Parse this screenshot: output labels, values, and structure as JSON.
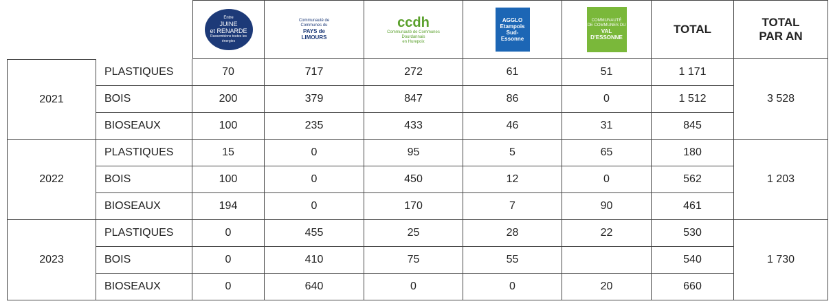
{
  "logos": [
    {
      "lines": [
        "Entre",
        "JUINE",
        "et RENARDE"
      ],
      "tagline": "Rassemblons toutes les énergies"
    },
    {
      "lines": [
        "Communauté de",
        "Communes du",
        "PAYS de",
        "LIMOURS"
      ]
    },
    {
      "lines": [
        "ccdh",
        "Communauté de Communes",
        "Dourdannais",
        "en Hurepoix"
      ]
    },
    {
      "lines": [
        "AGGLO",
        "Etampois",
        "Sud-Essonne"
      ]
    },
    {
      "lines": [
        "COMMUNAUTÉ",
        "DE COMMUNES DU",
        "VAL",
        "D'ESSONNE"
      ]
    }
  ],
  "header": {
    "total": "TOTAL",
    "total_per_year": "TOTAL PAR AN"
  },
  "years": [
    {
      "year": "2021",
      "total": "3 528",
      "rows": [
        {
          "type": "PLASTIQUES",
          "values": [
            "70",
            "717",
            "272",
            "61",
            "51"
          ],
          "total": "1 171"
        },
        {
          "type": "BOIS",
          "values": [
            "200",
            "379",
            "847",
            "86",
            "0"
          ],
          "total": "1 512"
        },
        {
          "type": "BIOSEAUX",
          "values": [
            "100",
            "235",
            "433",
            "46",
            "31"
          ],
          "total": "845"
        }
      ]
    },
    {
      "year": "2022",
      "total": "1 203",
      "rows": [
        {
          "type": "PLASTIQUES",
          "values": [
            "15",
            "0",
            "95",
            "5",
            "65"
          ],
          "total": "180"
        },
        {
          "type": "BOIS",
          "values": [
            "100",
            "0",
            "450",
            "12",
            "0"
          ],
          "total": "562"
        },
        {
          "type": "BIOSEAUX",
          "values": [
            "194",
            "0",
            "170",
            "7",
            "90"
          ],
          "total": "461"
        }
      ]
    },
    {
      "year": "2023",
      "total": "1 730",
      "rows": [
        {
          "type": "PLASTIQUES",
          "values": [
            "0",
            "455",
            "25",
            "28",
            "22"
          ],
          "total": "530"
        },
        {
          "type": "BOIS",
          "values": [
            "0",
            "410",
            "75",
            "55",
            null
          ],
          "total": "540"
        },
        {
          "type": "BIOSEAUX",
          "values": [
            "0",
            "640",
            "0",
            "0",
            "20"
          ],
          "total": "660"
        }
      ]
    }
  ]
}
